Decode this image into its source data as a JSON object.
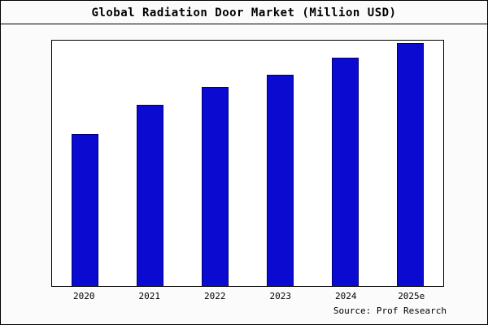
{
  "chart_data": {
    "type": "bar",
    "title": "Global Radiation Door Market (Million USD)",
    "categories": [
      "2020",
      "2021",
      "2022",
      "2023",
      "2024",
      "2025e"
    ],
    "values": [
      62,
      74,
      81,
      86,
      93,
      99
    ],
    "xlabel": "",
    "ylabel": "",
    "ylim": [
      0,
      100
    ],
    "grid": false,
    "legend": "none",
    "bar_color": "#0a0ad0",
    "bar_edge_color": "#000078",
    "source": "Source: Prof Research"
  }
}
